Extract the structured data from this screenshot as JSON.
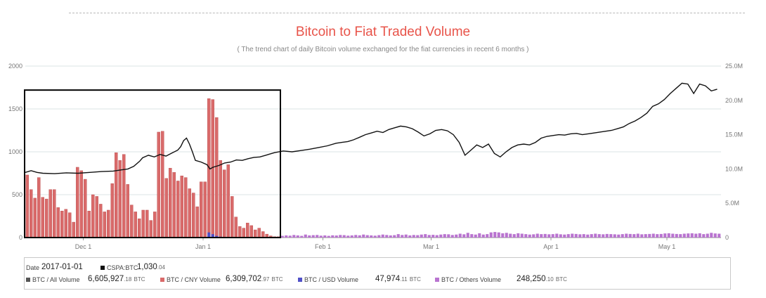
{
  "title": "Bitcoin to Fiat Traded Volume",
  "subtitle": "( The trend chart of daily Bitcoin volume exchanged for the fiat currencies in recent 6 months )",
  "colors": {
    "title": "#e8544a",
    "cny_bar": "#d96a6a",
    "usd": "#5050c8",
    "others": "#b974d0",
    "all": "#555555",
    "line": "#111111",
    "grid": "#dbe3e6"
  },
  "chart_data": {
    "type": "bar+line",
    "x_ticks": [
      "Dec 1",
      "Jan 1",
      "Feb 1",
      "Mar 1",
      "Apr 1",
      "May 1"
    ],
    "y_left": {
      "ticks": [
        "0",
        "500",
        "1000",
        "1500",
        "2000"
      ],
      "range": [
        0,
        2000
      ]
    },
    "y_right": {
      "ticks": [
        "0",
        "5.0M",
        "10.0M",
        "15.0M",
        "20.0M",
        "25.0M"
      ],
      "range": [
        0,
        25000000
      ]
    },
    "grid": true,
    "highlight_range": [
      "2016-11-16",
      "2017-01-21"
    ],
    "bar_start_date": "2016-11-16",
    "cny_volume": [
      730,
      560,
      460,
      700,
      470,
      450,
      560,
      560,
      350,
      310,
      330,
      290,
      180,
      820,
      780,
      680,
      310,
      500,
      480,
      390,
      300,
      320,
      630,
      990,
      900,
      970,
      620,
      380,
      300,
      220,
      320,
      320,
      200,
      300,
      1230,
      1240,
      690,
      810,
      760,
      660,
      720,
      700,
      570,
      520,
      360,
      650,
      650,
      1620,
      1610,
      1400,
      900,
      790,
      850,
      480,
      240,
      130,
      110,
      170,
      140,
      90,
      110,
      70,
      40,
      20,
      10,
      10
    ],
    "usd_volume": [
      0,
      0,
      0,
      0,
      0,
      0,
      0,
      0,
      0,
      0,
      0,
      0,
      0,
      0,
      0,
      0,
      0,
      0,
      0,
      0,
      0,
      0,
      0,
      0,
      0,
      0,
      0,
      0,
      0,
      0,
      0,
      0,
      0,
      0,
      0,
      0,
      0,
      0,
      0,
      0,
      0,
      0,
      0,
      0,
      0,
      0,
      0,
      60,
      40,
      20,
      10,
      0,
      0,
      0,
      0,
      0,
      0,
      0,
      0,
      0,
      0,
      0,
      0,
      0,
      0,
      0
    ],
    "others_volume_after": [
      20,
      25,
      22,
      30,
      25,
      20,
      35,
      25,
      28,
      30,
      22,
      25,
      20,
      26,
      24,
      30,
      28,
      22,
      25,
      30,
      26,
      35,
      28,
      25,
      22,
      28,
      35,
      30,
      25,
      28,
      40,
      30,
      35,
      25,
      30,
      28,
      35,
      40,
      30,
      32,
      28,
      35,
      40,
      38,
      30,
      35,
      45,
      38,
      55,
      40,
      35,
      50,
      35,
      40,
      60,
      65,
      60,
      50,
      55,
      45,
      40,
      50,
      45,
      40,
      35,
      38,
      45,
      40,
      42,
      38,
      40,
      45,
      38,
      35,
      40,
      45,
      42,
      38,
      40,
      35,
      40,
      45,
      40,
      38,
      42,
      40,
      38,
      35,
      40,
      45,
      42,
      40,
      45,
      38,
      40,
      42,
      45,
      40,
      42,
      48,
      50,
      45,
      42,
      40,
      45,
      48,
      50,
      45,
      50,
      40,
      45,
      55,
      48,
      45,
      50
    ],
    "cspa_btc_price_series": [
      [
        0,
        760
      ],
      [
        2,
        780
      ],
      [
        4,
        760
      ],
      [
        6,
        750
      ],
      [
        10,
        745
      ],
      [
        14,
        755
      ],
      [
        18,
        750
      ],
      [
        22,
        760
      ],
      [
        26,
        770
      ],
      [
        30,
        775
      ],
      [
        33,
        790
      ],
      [
        35,
        800
      ],
      [
        37,
        830
      ],
      [
        39,
        890
      ],
      [
        40,
        930
      ],
      [
        42,
        960
      ],
      [
        44,
        940
      ],
      [
        46,
        970
      ],
      [
        48,
        950
      ],
      [
        50,
        985
      ],
      [
        52,
        1020
      ],
      [
        53,
        1060
      ],
      [
        54,
        1130
      ],
      [
        55,
        1160
      ],
      [
        56,
        1090
      ],
      [
        57,
        1000
      ],
      [
        58,
        900
      ],
      [
        60,
        880
      ],
      [
        62,
        850
      ],
      [
        63,
        800
      ],
      [
        64,
        820
      ],
      [
        66,
        840
      ],
      [
        68,
        870
      ],
      [
        70,
        880
      ],
      [
        72,
        905
      ],
      [
        74,
        900
      ],
      [
        76,
        920
      ],
      [
        78,
        935
      ],
      [
        80,
        940
      ],
      [
        82,
        960
      ],
      [
        85,
        990
      ],
      [
        88,
        1010
      ],
      [
        91,
        1000
      ],
      [
        94,
        1015
      ],
      [
        97,
        1030
      ],
      [
        100,
        1050
      ],
      [
        103,
        1070
      ],
      [
        106,
        1100
      ],
      [
        108,
        1110
      ],
      [
        110,
        1120
      ],
      [
        112,
        1140
      ],
      [
        114,
        1170
      ],
      [
        116,
        1200
      ],
      [
        118,
        1220
      ],
      [
        120,
        1240
      ],
      [
        122,
        1225
      ],
      [
        124,
        1260
      ],
      [
        126,
        1280
      ],
      [
        128,
        1300
      ],
      [
        130,
        1290
      ],
      [
        132,
        1270
      ],
      [
        134,
        1230
      ],
      [
        136,
        1185
      ],
      [
        138,
        1210
      ],
      [
        140,
        1250
      ],
      [
        142,
        1260
      ],
      [
        144,
        1245
      ],
      [
        146,
        1200
      ],
      [
        148,
        1110
      ],
      [
        150,
        960
      ],
      [
        152,
        1020
      ],
      [
        154,
        1080
      ],
      [
        156,
        1050
      ],
      [
        158,
        1090
      ],
      [
        160,
        980
      ],
      [
        162,
        940
      ],
      [
        164,
        1000
      ],
      [
        166,
        1050
      ],
      [
        168,
        1080
      ],
      [
        170,
        1090
      ],
      [
        172,
        1080
      ],
      [
        174,
        1110
      ],
      [
        176,
        1160
      ],
      [
        178,
        1180
      ],
      [
        180,
        1190
      ],
      [
        182,
        1200
      ],
      [
        184,
        1195
      ],
      [
        186,
        1210
      ],
      [
        188,
        1215
      ],
      [
        190,
        1200
      ],
      [
        192,
        1210
      ],
      [
        194,
        1220
      ],
      [
        196,
        1230
      ],
      [
        198,
        1240
      ],
      [
        200,
        1250
      ],
      [
        202,
        1270
      ],
      [
        204,
        1290
      ],
      [
        206,
        1330
      ],
      [
        208,
        1360
      ],
      [
        210,
        1400
      ],
      [
        212,
        1450
      ],
      [
        214,
        1530
      ],
      [
        216,
        1560
      ],
      [
        218,
        1610
      ],
      [
        220,
        1680
      ],
      [
        222,
        1740
      ],
      [
        224,
        1800
      ],
      [
        226,
        1790
      ],
      [
        228,
        1680
      ],
      [
        230,
        1790
      ],
      [
        232,
        1770
      ],
      [
        234,
        1710
      ],
      [
        236,
        1730
      ]
    ],
    "series": [
      {
        "name": "BTC / CNY Volume"
      },
      {
        "name": "BTC / USD Volume"
      },
      {
        "name": "BTC / Others Volume"
      },
      {
        "name": "CSPA:BTC"
      }
    ]
  },
  "legend": {
    "date_label": "Date",
    "date_value": "2017-01-01",
    "cspa_label": "CSPA:BTC",
    "cspa_int": "1,030",
    "cspa_dec": ".04",
    "items": [
      {
        "label": "BTC / All Volume",
        "int": "6,605,927",
        "dec": ".18",
        "unit": "BTC"
      },
      {
        "label": "BTC / CNY Volume",
        "int": "6,309,702",
        "dec": ".97",
        "unit": "BTC"
      },
      {
        "label": "BTC / USD Volume",
        "int": "47,974",
        "dec": ".11",
        "unit": "BTC"
      },
      {
        "label": "BTC / Others Volume",
        "int": "248,250",
        "dec": ".10",
        "unit": "BTC"
      }
    ]
  }
}
